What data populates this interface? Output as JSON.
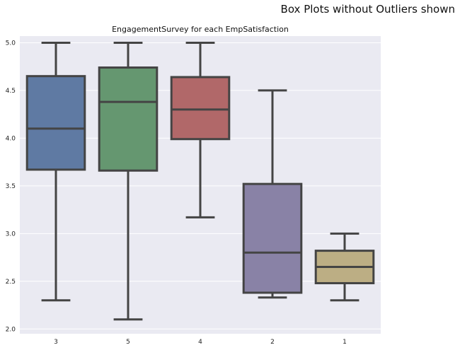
{
  "figure": {
    "suptitle": "Box Plots without Outliers shown"
  },
  "chart_data": {
    "type": "box",
    "title": "EngagementSurvey for each EmpSatisfaction",
    "xlabel": "",
    "ylabel": "",
    "ylim": [
      1.95,
      5.07
    ],
    "yticks": [
      2.0,
      2.5,
      3.0,
      3.5,
      4.0,
      4.5,
      5.0
    ],
    "ytick_labels": [
      "2.0",
      "2.5",
      "3.0",
      "3.5",
      "4.0",
      "4.5",
      "5.0"
    ],
    "categories": [
      "3",
      "5",
      "4",
      "2",
      "1"
    ],
    "grid": true,
    "boxes": [
      {
        "category": "3",
        "whislo": 2.3,
        "q1": 3.67,
        "med": 4.1,
        "q3": 4.65,
        "whishi": 5.0,
        "color": "#5f7aa3"
      },
      {
        "category": "5",
        "whislo": 2.1,
        "q1": 3.66,
        "med": 4.38,
        "q3": 4.74,
        "whishi": 5.0,
        "color": "#659770"
      },
      {
        "category": "4",
        "whislo": 3.17,
        "q1": 3.99,
        "med": 4.3,
        "q3": 4.64,
        "whishi": 5.0,
        "color": "#b16869"
      },
      {
        "category": "2",
        "whislo": 2.33,
        "q1": 2.38,
        "med": 2.8,
        "q3": 3.52,
        "whishi": 4.5,
        "color": "#8982a6"
      },
      {
        "category": "1",
        "whislo": 2.3,
        "q1": 2.48,
        "med": 2.65,
        "q3": 2.82,
        "whishi": 3.0,
        "color": "#bcae84"
      }
    ]
  }
}
